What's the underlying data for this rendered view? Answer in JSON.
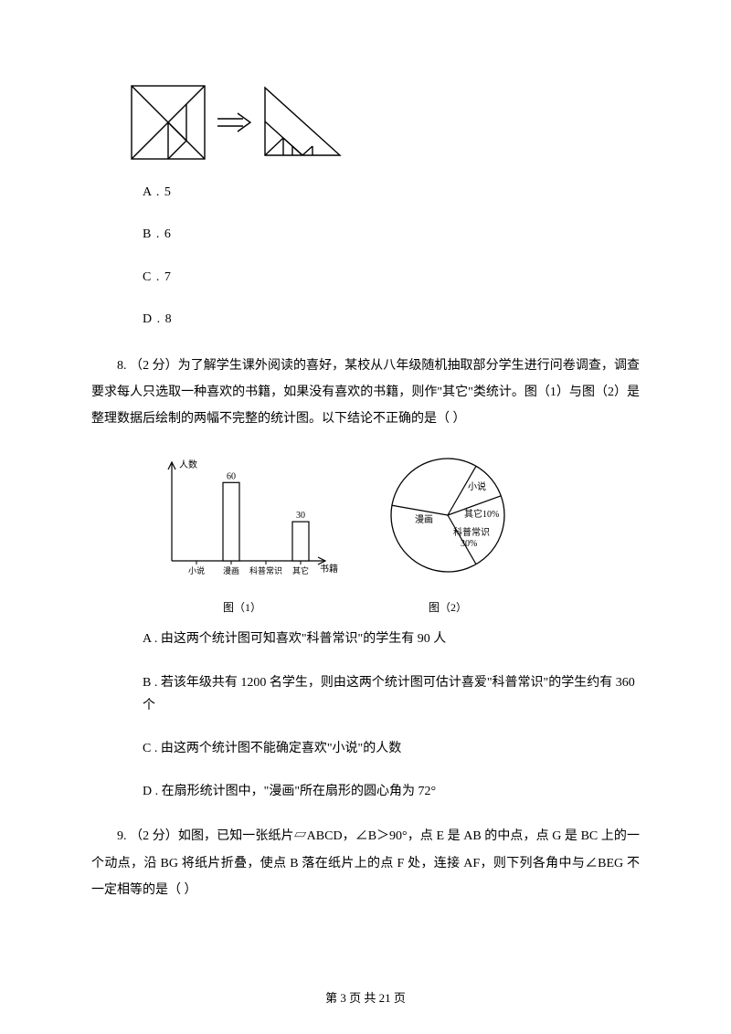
{
  "tangram": {
    "stroke": "#000000",
    "stroke_width": 1.2
  },
  "q7_options": {
    "a": "A . 5",
    "b": "B . 6",
    "c": "C . 7",
    "d": "D . 8"
  },
  "q8": {
    "stem": "8.  （2 分）为了解学生课外阅读的喜好，某校从八年级随机抽取部分学生进行问卷调查，调查要求每人只选取一种喜欢的书籍，如果没有喜欢的书籍，则作\"其它\"类统计。图（1）与图（2）是整理数据后绘制的两幅不完整的统计图。以下结论不正确的是（    ）",
    "options": {
      "a": "A .  由这两个统计图可知喜欢\"科普常识\"的学生有 90 人",
      "b": "B .  若该年级共有 1200 名学生，则由这两个统计图可估计喜爱\"科普常识\"的学生约有 360 个",
      "c": "C .  由这两个统计图不能确定喜欢\"小说\"的人数",
      "d": "D .  在扇形统计图中，\"漫画\"所在扇形的圆心角为 72°"
    },
    "bar_chart": {
      "type": "bar",
      "y_axis_label": "人数",
      "x_axis_label": "书籍",
      "categories": [
        "小说",
        "漫画",
        "科普常识",
        "其它"
      ],
      "values": [
        null,
        60,
        null,
        30
      ],
      "value_labels": {
        "漫画": "60",
        "其它": "30"
      },
      "caption": "图（1）",
      "axis_color": "#000000",
      "bar_fill": "#ffffff",
      "bar_stroke": "#000000",
      "font_size": 10
    },
    "pie_chart": {
      "type": "pie",
      "slices": [
        {
          "label": "小说",
          "label_only": true
        },
        {
          "label": "其它10%",
          "percent": 10
        },
        {
          "label": "科普常识\n30%",
          "percent": 30
        },
        {
          "label": "漫画",
          "label_only": true
        }
      ],
      "caption": "图（2）",
      "stroke": "#000000",
      "fill": "#ffffff",
      "font_size": 10,
      "radius": 62
    }
  },
  "q9": {
    "stem": "9.  （2 分）如图，已知一张纸片▱ABCD，∠B＞90°，点 E 是 AB 的中点，点 G 是 BC 上的一个动点，沿 BG 将纸片折叠，使点 B 落在纸片上的点 F 处，连接 AF，则下列各角中与∠BEG 不一定相等的是（     ）"
  },
  "footer": "第 3 页 共 21 页"
}
